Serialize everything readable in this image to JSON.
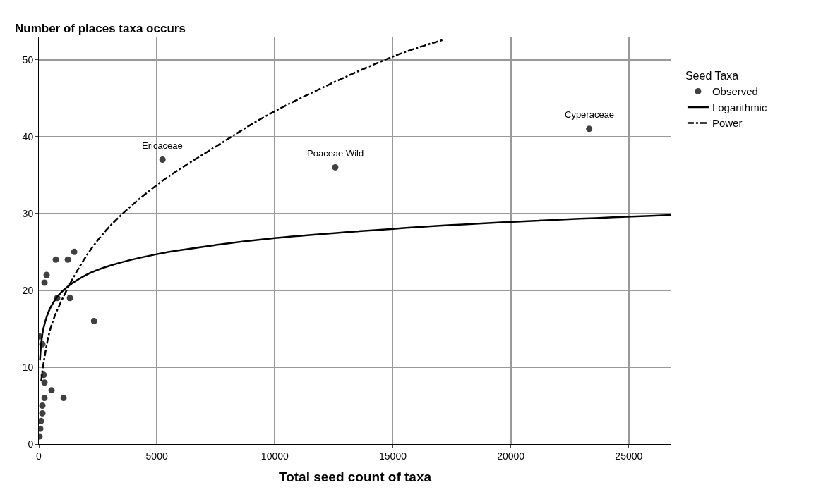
{
  "chart_data": {
    "type": "scatter",
    "ylabel": "Number of places taxa occurs",
    "xlabel": "Total seed count of taxa",
    "legend_title": "Seed Taxa",
    "legend": "right",
    "xlim": [
      0,
      26800
    ],
    "xticks": [
      0,
      5000,
      10000,
      15000,
      20000,
      25000
    ],
    "ylim": [
      0,
      53
    ],
    "yticks": [
      0,
      10,
      20,
      30,
      40,
      50
    ],
    "grid": true,
    "series": [
      {
        "name": "Observed",
        "marker": "circle",
        "color": "#404040",
        "x": [
          5240,
          12560,
          23320,
          1500,
          720,
          1230,
          330,
          240,
          780,
          1320,
          2340,
          150,
          30,
          210,
          240,
          540,
          1050,
          240,
          150,
          150,
          90,
          60,
          30
        ],
        "values": [
          37,
          36,
          41,
          25,
          24,
          24,
          22,
          21,
          19,
          19,
          16,
          13,
          14,
          9,
          8,
          7,
          6,
          6,
          5,
          4,
          3,
          2,
          1
        ]
      },
      {
        "name": "Logarithmic",
        "type": "line",
        "line_style": "solid",
        "color": "#000000",
        "x": [
          50,
          100,
          200,
          500,
          1000,
          2000,
          3000,
          5000,
          7500,
          10000,
          15000,
          20000,
          26800
        ],
        "values": [
          10.9,
          13.0,
          15.1,
          17.8,
          19.9,
          22.0,
          23.2,
          24.7,
          25.9,
          26.8,
          28.0,
          28.9,
          29.8
        ]
      },
      {
        "name": "Power",
        "type": "line",
        "line_style": "dashdot",
        "color": "#000000",
        "x": [
          100,
          200,
          500,
          1000,
          2000,
          3000,
          5000,
          7500,
          10000,
          15000,
          17150
        ],
        "values": [
          8.2,
          10.5,
          15.1,
          18.9,
          24.4,
          28.3,
          33.7,
          38.7,
          43.3,
          50.4,
          52.6
        ]
      }
    ],
    "annotations": [
      {
        "text": "Ericaceae",
        "x": 5240,
        "y": 37
      },
      {
        "text": "Poaceae Wild",
        "x": 12560,
        "y": 36
      },
      {
        "text": "Cyperaceae",
        "x": 23320,
        "y": 41
      }
    ]
  }
}
